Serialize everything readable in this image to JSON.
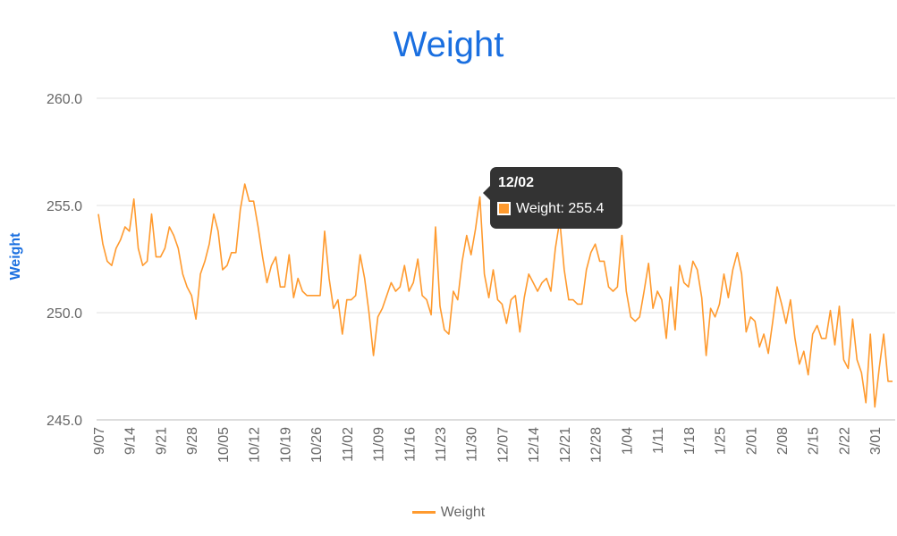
{
  "chart_data": {
    "type": "line",
    "title": "Weight",
    "xlabel": "",
    "ylabel": "Weight",
    "ylim": [
      245,
      260
    ],
    "yticks": [
      "245.0",
      "250.0",
      "255.0",
      "260.0"
    ],
    "ytick_values": [
      245,
      250,
      255,
      260
    ],
    "grid": true,
    "legend": "bottom",
    "start_date": "9/07",
    "tick_every_days": 7,
    "xtick_labels": [
      "9/07",
      "9/14",
      "9/21",
      "9/28",
      "10/05",
      "10/12",
      "10/19",
      "10/26",
      "11/02",
      "11/09",
      "11/16",
      "11/23",
      "11/30",
      "12/07",
      "12/14",
      "12/21",
      "12/28",
      "1/04",
      "1/11",
      "1/18",
      "1/25",
      "2/01",
      "2/08",
      "2/15",
      "2/22",
      "3/01"
    ],
    "series": [
      {
        "name": "Weight",
        "color": "#ff9a2e",
        "values": [
          254.6,
          253.2,
          252.4,
          252.2,
          253.0,
          253.4,
          254.0,
          253.8,
          255.3,
          253.0,
          252.2,
          252.4,
          254.6,
          252.6,
          252.6,
          253.0,
          254.0,
          253.6,
          253.0,
          251.8,
          251.2,
          250.8,
          249.7,
          251.8,
          252.4,
          253.2,
          254.6,
          253.8,
          252.0,
          252.2,
          252.8,
          252.8,
          254.8,
          256.0,
          255.2,
          255.2,
          254.0,
          252.6,
          251.4,
          252.2,
          252.6,
          251.2,
          251.2,
          252.7,
          250.7,
          251.6,
          251.0,
          250.8,
          250.8,
          250.8,
          250.8,
          253.8,
          251.6,
          250.2,
          250.6,
          249.0,
          250.6,
          250.6,
          250.8,
          252.7,
          251.6,
          250.0,
          248.0,
          249.8,
          250.2,
          250.8,
          251.4,
          251.0,
          251.2,
          252.2,
          251.0,
          251.4,
          252.5,
          250.8,
          250.6,
          249.9,
          254.0,
          250.3,
          249.2,
          249.0,
          251.0,
          250.6,
          252.4,
          253.6,
          252.7,
          253.9,
          255.4,
          251.8,
          250.7,
          252.0,
          250.6,
          250.4,
          249.5,
          250.6,
          250.8,
          249.1,
          250.7,
          251.8,
          251.4,
          251.0,
          251.4,
          251.6,
          251.0,
          253.0,
          254.3,
          252.0,
          250.6,
          250.6,
          250.4,
          250.4,
          252.0,
          252.8,
          253.2,
          252.4,
          252.4,
          251.2,
          251.0,
          251.2,
          253.6,
          251.0,
          249.8,
          249.6,
          249.8,
          251.0,
          252.3,
          250.2,
          251.0,
          250.6,
          248.8,
          251.2,
          249.2,
          252.2,
          251.4,
          251.2,
          252.4,
          252.0,
          250.7,
          248.0,
          250.2,
          249.8,
          250.4,
          251.8,
          250.7,
          252.0,
          252.8,
          251.8,
          249.1,
          249.8,
          249.6,
          248.4,
          249.0,
          248.1,
          249.6,
          251.2,
          250.4,
          249.5,
          250.6,
          248.8,
          247.6,
          248.2,
          247.1,
          249.0,
          249.4,
          248.8,
          248.8,
          250.1,
          248.5,
          250.3,
          247.8,
          247.4,
          249.7,
          247.8,
          247.2,
          245.8,
          249.0,
          245.6,
          247.4,
          249.0,
          246.8,
          246.8
        ]
      }
    ],
    "tooltip": {
      "date": "12/02",
      "label": "Weight: 255.4",
      "index": 86
    }
  }
}
